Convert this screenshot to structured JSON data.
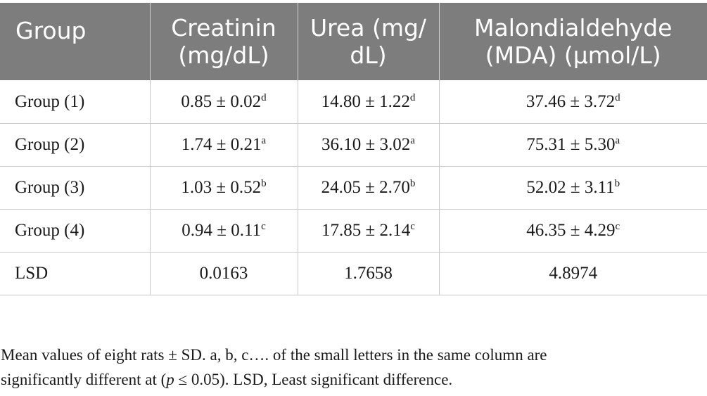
{
  "table": {
    "headers": [
      "Group",
      "Creatinin\n(mg/dL)",
      "Urea (mg/\ndL)",
      "Malondialdehyde\n(MDA) (μmol/L)"
    ],
    "rows": [
      {
        "group": "Group (1)",
        "creatinin": "0.85 ± 0.02",
        "creatinin_sig": "d",
        "urea": "14.80 ± 1.22",
        "urea_sig": "d",
        "mda": "37.46 ± 3.72",
        "mda_sig": "d"
      },
      {
        "group": "Group (2)",
        "creatinin": "1.74 ± 0.21",
        "creatinin_sig": "a",
        "urea": "36.10 ± 3.02",
        "urea_sig": "a",
        "mda": "75.31 ± 5.30",
        "mda_sig": "a"
      },
      {
        "group": "Group (3)",
        "creatinin": "1.03 ± 0.52",
        "creatinin_sig": "b",
        "urea": "24.05 ± 2.70",
        "urea_sig": "b",
        "mda": "52.02 ± 3.11",
        "mda_sig": "b"
      },
      {
        "group": "Group (4)",
        "creatinin": "0.94 ± 0.11",
        "creatinin_sig": "c",
        "urea": "17.85 ± 2.14",
        "urea_sig": "c",
        "mda": "46.35 ± 4.29",
        "mda_sig": "c"
      },
      {
        "group": "LSD",
        "creatinin": "0.0163",
        "creatinin_sig": "",
        "urea": "1.7658",
        "urea_sig": "",
        "mda": "4.8974",
        "mda_sig": ""
      }
    ]
  },
  "footnote": {
    "line1": "Mean values of eight rats ± SD. a, b, c…. of the small letters in the same column are",
    "line2_before_p": "significantly different at (",
    "p_symbol": "p",
    "line2_after_p": " ≤ 0.05). LSD, Least significant difference."
  }
}
